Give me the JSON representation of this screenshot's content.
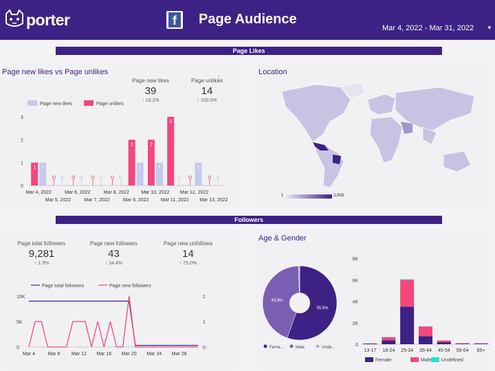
{
  "header": {
    "brand": "porter",
    "title": "Page Audience",
    "date_range": "Mar 4, 2022 - Mar 31, 2022",
    "accent": "#3d2185"
  },
  "sections": {
    "likes": "Page Likes",
    "followers": "Followers"
  },
  "likes_card": {
    "title": "Page new likes vs Page unlikes",
    "kpis": [
      {
        "label": "Page new likes",
        "value": "39",
        "delta": "18.2%"
      },
      {
        "label": "Page unlikes",
        "value": "14",
        "delta": "100.0%"
      }
    ]
  },
  "location_card": {
    "title": "Location",
    "legend_min": "1",
    "legend_max": "3,009"
  },
  "followers_card": {
    "kpis": [
      {
        "label": "Page total followers",
        "value": "9,281",
        "delta": "1.9%"
      },
      {
        "label": "Page new followers",
        "value": "43",
        "delta": "34.4%"
      },
      {
        "label": "Page new unfollows",
        "value": "14",
        "delta": "75.0%"
      }
    ]
  },
  "age_card": {
    "title": "Age & Gender"
  },
  "chart_data": [
    {
      "type": "bar",
      "categories": [
        "Mar 4, 2022",
        "Mar 5, 2022",
        "Mar 6, 2022",
        "Mar 7, 2022",
        "Mar 8, 2022",
        "Mar 9, 2022",
        "Mar 10, 2022",
        "Mar 11, 2022",
        "Mar 12, 2022",
        "Mar 13, 2022"
      ],
      "series": [
        {
          "name": "Page new likes",
          "color": "#c5c9eb",
          "values": [
            1,
            0,
            0,
            0,
            0,
            1,
            1,
            0,
            1,
            0
          ]
        },
        {
          "name": "Page unlikes",
          "color": "#f4477e",
          "values": [
            1,
            0,
            0,
            0,
            0,
            2,
            2,
            3,
            0,
            0
          ]
        }
      ],
      "yticks": [
        "0",
        "1",
        "2",
        "3"
      ],
      "ylim": [
        0,
        3
      ]
    },
    {
      "type": "line",
      "x": [
        "Mar 4",
        "Mar 8",
        "Mar 12",
        "Mar 16",
        "Mar 20",
        "Mar 24",
        "Mar 28"
      ],
      "series": [
        {
          "name": "Page total followers",
          "color": "#3d2185",
          "axis": "left",
          "points": [
            [
              0,
              9
            ],
            [
              16,
              9
            ],
            [
              17,
              0.3
            ],
            [
              27,
              0.3
            ]
          ]
        },
        {
          "name": "Page new followers",
          "color": "#f4477e",
          "axis": "right",
          "points": [
            [
              0,
              0
            ],
            [
              1,
              1
            ],
            [
              2,
              1
            ],
            [
              3,
              0
            ],
            [
              4,
              0
            ],
            [
              5,
              0
            ],
            [
              6,
              0
            ],
            [
              7,
              1
            ],
            [
              8,
              1
            ],
            [
              9,
              1
            ],
            [
              10,
              0
            ],
            [
              11,
              1
            ],
            [
              12,
              0
            ],
            [
              13,
              1
            ],
            [
              14,
              0
            ],
            [
              15,
              0
            ],
            [
              16,
              2
            ],
            [
              17,
              0
            ],
            [
              18,
              0
            ],
            [
              19,
              0
            ],
            [
              20,
              0
            ],
            [
              21,
              0
            ],
            [
              22,
              0
            ],
            [
              23,
              0
            ],
            [
              24,
              0
            ],
            [
              25,
              0
            ],
            [
              26,
              0
            ],
            [
              27,
              0
            ]
          ]
        }
      ],
      "yleft": [
        "0",
        "5K",
        "10K"
      ],
      "yright": [
        "0",
        "1",
        "2"
      ]
    },
    {
      "type": "pie",
      "slices": [
        {
          "name": "Female",
          "value": 55.5,
          "label": "55.5%",
          "color": "#3d2185"
        },
        {
          "name": "Male",
          "value": 43.9,
          "label": "43.9%",
          "color": "#7a5fb5"
        },
        {
          "name": "Undefined",
          "value": 0.6,
          "label": "",
          "color": "#b9a9d9"
        }
      ],
      "legend": [
        "Fema...",
        "Male",
        "Unde..."
      ]
    },
    {
      "type": "bar",
      "categories": [
        "13-17",
        "18-24",
        "25-34",
        "35-44",
        "45-54",
        "55-64",
        "65+"
      ],
      "series": [
        {
          "name": "Female",
          "color": "#3d2185",
          "values": [
            0,
            0.35,
            3.5,
            0.75,
            0.2,
            0.05,
            0.05
          ]
        },
        {
          "name": "Male",
          "color": "#f4477e",
          "values": [
            0,
            0.3,
            2.5,
            0.9,
            0.15,
            0.05,
            0.05
          ]
        },
        {
          "name": "Undefined",
          "color": "#1de3d4",
          "values": [
            0,
            0.03,
            0.05,
            0.02,
            0,
            0,
            0
          ]
        }
      ],
      "yticks": [
        "0",
        "2K",
        "4K",
        "6K",
        "8K"
      ],
      "ylim": [
        0,
        8
      ]
    }
  ]
}
